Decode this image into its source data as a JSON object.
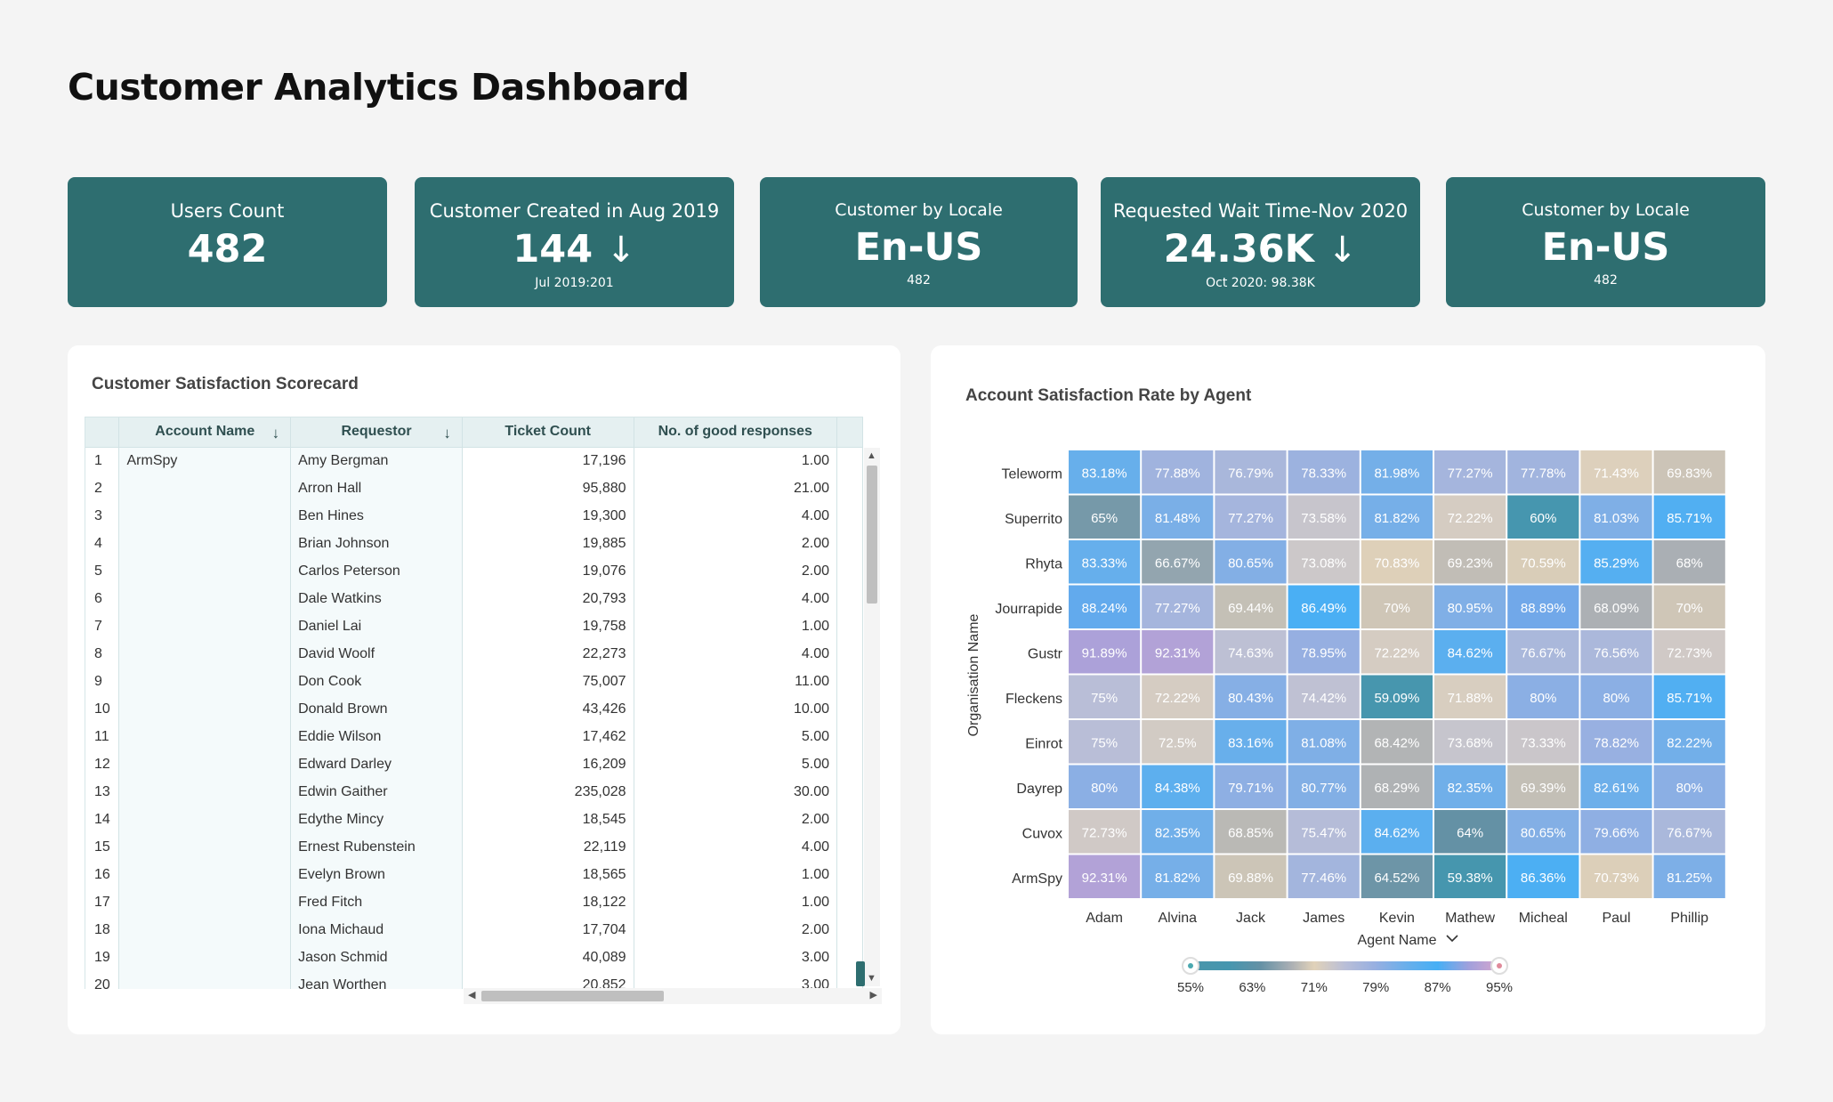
{
  "page_title": "Customer Analytics Dashboard",
  "kpis": [
    {
      "title": "Users Count",
      "value": "482",
      "arrow": "",
      "sub": ""
    },
    {
      "title": "Customer Created in Aug 2019",
      "value": "144",
      "arrow": "↓",
      "sub": "Jul 2019:201"
    },
    {
      "title": "Customer by Locale",
      "value": "En-US",
      "arrow": "",
      "sub": "482"
    },
    {
      "title": "Requested Wait Time-Nov 2020",
      "value": "24.36K",
      "arrow": "↓",
      "sub": "Oct 2020: 98.38K"
    },
    {
      "title": "Customer by Locale",
      "value": "En-US",
      "arrow": "",
      "sub": "482"
    }
  ],
  "scorecard": {
    "title": "Customer Satisfaction Scorecard",
    "columns": [
      "Account Name",
      "Requestor",
      "Ticket Count",
      "No. of good responses"
    ],
    "sort_arrow": "↓",
    "account": "ArmSpy",
    "rows": [
      {
        "n": "1",
        "requestor": "Amy Bergman",
        "tickets": "17,196",
        "good": "1.00"
      },
      {
        "n": "2",
        "requestor": "Arron Hall",
        "tickets": "95,880",
        "good": "21.00"
      },
      {
        "n": "3",
        "requestor": "Ben Hines",
        "tickets": "19,300",
        "good": "4.00"
      },
      {
        "n": "4",
        "requestor": "Brian Johnson",
        "tickets": "19,885",
        "good": "2.00"
      },
      {
        "n": "5",
        "requestor": "Carlos Peterson",
        "tickets": "19,076",
        "good": "2.00"
      },
      {
        "n": "6",
        "requestor": "Dale Watkins",
        "tickets": "20,793",
        "good": "4.00"
      },
      {
        "n": "7",
        "requestor": "Daniel Lai",
        "tickets": "19,758",
        "good": "1.00"
      },
      {
        "n": "8",
        "requestor": "David Woolf",
        "tickets": "22,273",
        "good": "4.00"
      },
      {
        "n": "9",
        "requestor": "Don Cook",
        "tickets": "75,007",
        "good": "11.00"
      },
      {
        "n": "10",
        "requestor": "Donald Brown",
        "tickets": "43,426",
        "good": "10.00"
      },
      {
        "n": "11",
        "requestor": "Eddie Wilson",
        "tickets": "17,462",
        "good": "5.00"
      },
      {
        "n": "12",
        "requestor": "Edward Darley",
        "tickets": "16,209",
        "good": "5.00"
      },
      {
        "n": "13",
        "requestor": "Edwin Gaither",
        "tickets": "235,028",
        "good": "30.00"
      },
      {
        "n": "14",
        "requestor": "Edythe Mincy",
        "tickets": "18,545",
        "good": "2.00"
      },
      {
        "n": "15",
        "requestor": "Ernest Rubenstein",
        "tickets": "22,119",
        "good": "4.00"
      },
      {
        "n": "16",
        "requestor": "Evelyn Brown",
        "tickets": "18,565",
        "good": "1.00"
      },
      {
        "n": "17",
        "requestor": "Fred Fitch",
        "tickets": "18,122",
        "good": "1.00"
      },
      {
        "n": "18",
        "requestor": "Iona Michaud",
        "tickets": "17,704",
        "good": "2.00"
      },
      {
        "n": "19",
        "requestor": "Jason Schmid",
        "tickets": "40,089",
        "good": "3.00"
      },
      {
        "n": "20",
        "requestor": "Jean Worthen",
        "tickets": "20,852",
        "good": "3.00"
      }
    ]
  },
  "heatmap_title": "Account Satisfaction Rate by Agent",
  "chart_data": {
    "type": "heatmap",
    "title": "Account Satisfaction Rate by Agent",
    "xlabel": "Agent Name",
    "ylabel": "Organisation Name",
    "x": [
      "Adam",
      "Alvina",
      "Jack",
      "James",
      "Kevin",
      "Mathew",
      "Micheal",
      "Paul",
      "Phillip"
    ],
    "y": [
      "Teleworm",
      "Superrito",
      "Rhyta",
      "Jourrapide",
      "Gustr",
      "Fleckens",
      "Einrot",
      "Dayrep",
      "Cuvox",
      "ArmSpy"
    ],
    "values": [
      [
        83.18,
        77.88,
        76.79,
        78.33,
        81.98,
        77.27,
        77.78,
        71.43,
        69.83
      ],
      [
        65,
        81.48,
        77.27,
        73.58,
        81.82,
        72.22,
        60,
        81.03,
        85.71
      ],
      [
        83.33,
        66.67,
        80.65,
        73.08,
        70.83,
        69.23,
        70.59,
        85.29,
        68
      ],
      [
        88.24,
        77.27,
        69.44,
        86.49,
        70,
        80.95,
        88.89,
        68.09,
        70
      ],
      [
        91.89,
        92.31,
        74.63,
        78.95,
        72.22,
        84.62,
        76.67,
        76.56,
        72.73
      ],
      [
        75,
        72.22,
        80.43,
        74.42,
        59.09,
        71.88,
        80,
        80,
        85.71
      ],
      [
        75,
        72.5,
        83.16,
        81.08,
        68.42,
        73.68,
        73.33,
        78.82,
        82.22
      ],
      [
        80,
        84.38,
        79.71,
        80.77,
        68.29,
        82.35,
        69.39,
        82.61,
        80
      ],
      [
        72.73,
        82.35,
        68.85,
        75.47,
        84.62,
        64,
        80.65,
        79.66,
        76.67
      ],
      [
        92.31,
        81.82,
        69.88,
        77.46,
        64.52,
        59.38,
        86.36,
        70.73,
        81.25
      ]
    ],
    "labels": [
      [
        "83.18%",
        "77.88%",
        "76.79%",
        "78.33%",
        "81.98%",
        "77.27%",
        "77.78%",
        "71.43%",
        "69.83%"
      ],
      [
        "65%",
        "81.48%",
        "77.27%",
        "73.58%",
        "81.82%",
        "72.22%",
        "60%",
        "81.03%",
        "85.71%"
      ],
      [
        "83.33%",
        "66.67%",
        "80.65%",
        "73.08%",
        "70.83%",
        "69.23%",
        "70.59%",
        "85.29%",
        "68%"
      ],
      [
        "88.24%",
        "77.27%",
        "69.44%",
        "86.49%",
        "70%",
        "80.95%",
        "88.89%",
        "68.09%",
        "70%"
      ],
      [
        "91.89%",
        "92.31%",
        "74.63%",
        "78.95%",
        "72.22%",
        "84.62%",
        "76.67%",
        "76.56%",
        "72.73%"
      ],
      [
        "75%",
        "72.22%",
        "80.43%",
        "74.42%",
        "59.09%",
        "71.88%",
        "80%",
        "80%",
        "85.71%"
      ],
      [
        "75%",
        "72.5%",
        "83.16%",
        "81.08%",
        "68.42%",
        "73.68%",
        "73.33%",
        "78.82%",
        "82.22%"
      ],
      [
        "80%",
        "84.38%",
        "79.71%",
        "80.77%",
        "68.29%",
        "82.35%",
        "69.39%",
        "82.61%",
        "80%"
      ],
      [
        "72.73%",
        "82.35%",
        "68.85%",
        "75.47%",
        "84.62%",
        "64%",
        "80.65%",
        "79.66%",
        "76.67%"
      ],
      [
        "92.31%",
        "81.82%",
        "69.88%",
        "77.46%",
        "64.52%",
        "59.38%",
        "86.36%",
        "70.73%",
        "81.25%"
      ]
    ],
    "color_range": [
      55,
      95
    ],
    "legend_ticks": [
      "55%",
      "63%",
      "71%",
      "79%",
      "87%",
      "95%"
    ],
    "xlabel_chevron": "chevron-down-icon"
  }
}
